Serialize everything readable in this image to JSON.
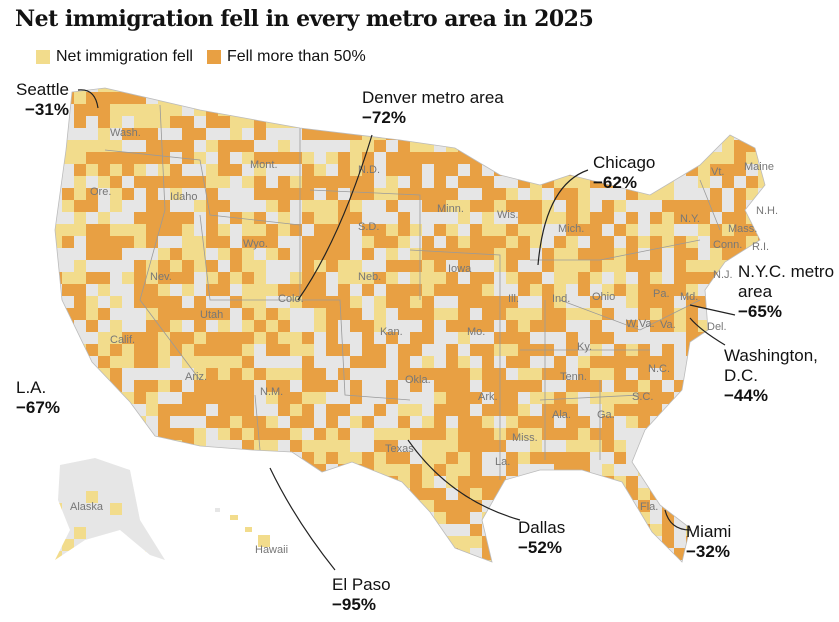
{
  "title": "Net immigration fell in every metro area in 2025",
  "legend": [
    {
      "label": "Net immigration fell",
      "color": "#f2dc8c"
    },
    {
      "label": "Fell more than 50%",
      "color": "#e8a043"
    }
  ],
  "colors": {
    "no_data": "#e6e6e6",
    "border": "#ffffff",
    "state_line": "#9a9a9a"
  },
  "annotations": [
    {
      "city": "Seattle",
      "value": "−31%"
    },
    {
      "city": "Denver metro area",
      "value": "−72%"
    },
    {
      "city": "Chicago",
      "value": "−62%"
    },
    {
      "city": "N.Y.C. metro area",
      "value": "−65%"
    },
    {
      "city": "Washington, D.C.",
      "value": "−44%"
    },
    {
      "city": "L.A.",
      "value": "−67%"
    },
    {
      "city": "Dallas",
      "value": "−52%"
    },
    {
      "city": "Miami",
      "value": "−32%"
    },
    {
      "city": "El Paso",
      "value": "−95%"
    }
  ],
  "state_labels": [
    "Wash.",
    "Ore.",
    "Calif.",
    "Nev.",
    "Idaho",
    "Mont.",
    "Wyo.",
    "Utah",
    "Ariz.",
    "Colo.",
    "N.M.",
    "N.D.",
    "S.D.",
    "Neb.",
    "Kan.",
    "Okla.",
    "Texas",
    "Minn.",
    "Iowa",
    "Mo.",
    "Ark.",
    "La.",
    "Wis.",
    "Ill.",
    "Mich.",
    "Ind.",
    "Ohio",
    "Ky.",
    "Tenn.",
    "Miss.",
    "Ala.",
    "Ga.",
    "Fla.",
    "S.C.",
    "N.C.",
    "Va.",
    "W.Va.",
    "Pa.",
    "N.Y.",
    "Vt.",
    "Maine",
    "N.H.",
    "Mass.",
    "Conn.",
    "R.I.",
    "N.J.",
    "Del.",
    "Md.",
    "Alaska",
    "Hawaii"
  ]
}
